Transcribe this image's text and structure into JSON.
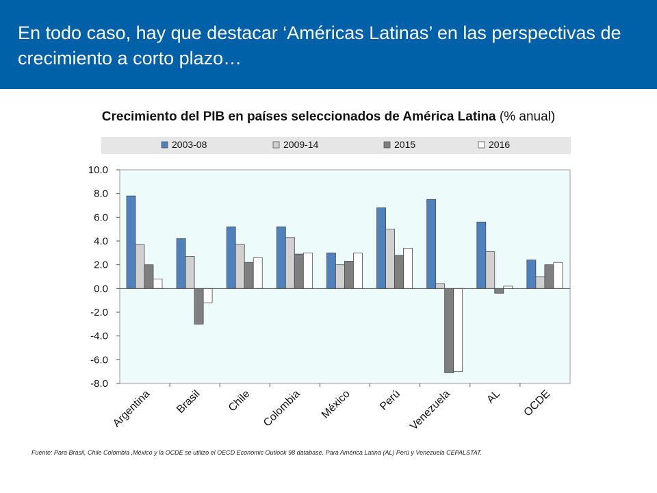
{
  "slide": {
    "title": "En todo caso, hay que destacar ‘Américas Latinas’ en las perspectivas de crecimiento a corto plazo…",
    "source": "Fuente:  Para Brasil, Chile Colombia ,México y la OCDE se utilizo el OECD Economic Outlook 98 database.  Para América Latina (AL) Perú y Venezuela CEPALSTAT."
  },
  "chart_data": {
    "type": "bar",
    "title_bold": "Crecimiento del PIB en países seleccionados de América Latina",
    "title_regular": " (% anual)",
    "categories": [
      "Argentina",
      "Brasil",
      "Chile",
      "Colombia",
      "México",
      "Perú",
      "Venezuela",
      "AL",
      "OCDE"
    ],
    "series": [
      {
        "name": "2003-08",
        "color": "#4f81bd",
        "values": [
          7.8,
          4.2,
          5.2,
          5.2,
          3.0,
          6.8,
          7.5,
          5.6,
          2.4
        ]
      },
      {
        "name": "2009-14",
        "color": "#d0d0d0",
        "values": [
          3.7,
          2.7,
          3.7,
          4.3,
          2.0,
          5.0,
          0.4,
          3.1,
          1.0
        ]
      },
      {
        "name": "2015",
        "color": "#7f7f7f",
        "values": [
          2.0,
          -3.0,
          2.2,
          2.9,
          2.3,
          2.8,
          -7.1,
          -0.4,
          2.0
        ]
      },
      {
        "name": "2016",
        "color": "#ffffff",
        "values": [
          0.8,
          -1.2,
          2.6,
          3.0,
          3.0,
          3.4,
          -7.0,
          0.2,
          2.2
        ]
      }
    ],
    "y_ticks": [
      "10.0",
      "8.0",
      "6.0",
      "4.0",
      "2.0",
      "0.0",
      "-2.0",
      "-4.0",
      "-6.0",
      "-8.0"
    ],
    "ylim": [
      -8,
      10
    ],
    "legend_position": "top",
    "plot_background": "#edfbfb",
    "grid": false
  }
}
